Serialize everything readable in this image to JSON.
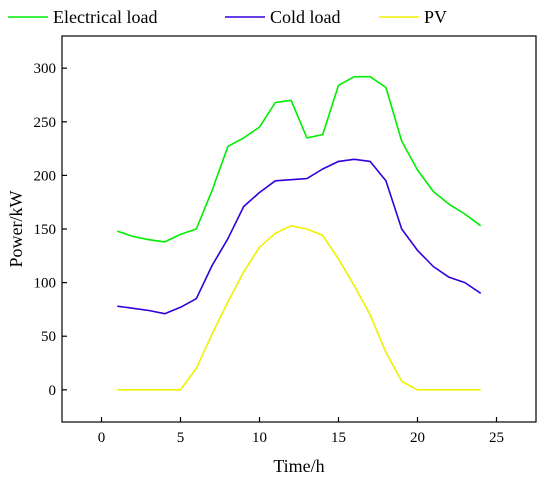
{
  "chart_data": {
    "type": "line",
    "xlabel": "Time/h",
    "ylabel": "Power/kW",
    "xlim": [
      -2.5,
      27.5
    ],
    "ylim": [
      -30,
      330
    ],
    "xticks": [
      0,
      5,
      10,
      15,
      20,
      25
    ],
    "yticks": [
      0,
      50,
      100,
      150,
      200,
      250,
      300
    ],
    "xtick_labels": [
      "0",
      "5",
      "10",
      "15",
      "20",
      "25"
    ],
    "ytick_labels": [
      "0",
      "50",
      "100",
      "150",
      "200",
      "250",
      "300"
    ],
    "grid": false,
    "legend_position": "top",
    "x": [
      1,
      2,
      3,
      4,
      5,
      6,
      7,
      8,
      9,
      10,
      11,
      12,
      13,
      14,
      15,
      16,
      17,
      18,
      19,
      20,
      21,
      22,
      23,
      24
    ],
    "series": [
      {
        "name": "Electrical load",
        "color": "#00ee00",
        "values": [
          148,
          143,
          140,
          138,
          145,
          150,
          186,
          227,
          235,
          245,
          268,
          270,
          235,
          238,
          284,
          292,
          292,
          282,
          232,
          205,
          185,
          173,
          164,
          153
        ]
      },
      {
        "name": "Cold load",
        "color": "#3300dd",
        "values": [
          78,
          76,
          74,
          71,
          77,
          85,
          116,
          141,
          171,
          184,
          195,
          196,
          197,
          206,
          213,
          215,
          213,
          195,
          150,
          130,
          115,
          105,
          100,
          90
        ]
      },
      {
        "name": "PV",
        "color": "#f0f000",
        "values": [
          0,
          0,
          0,
          0,
          0,
          20,
          52,
          82,
          110,
          133,
          146,
          153,
          150,
          144,
          122,
          97,
          70,
          35,
          8,
          0,
          0,
          0,
          0,
          0
        ]
      }
    ]
  }
}
